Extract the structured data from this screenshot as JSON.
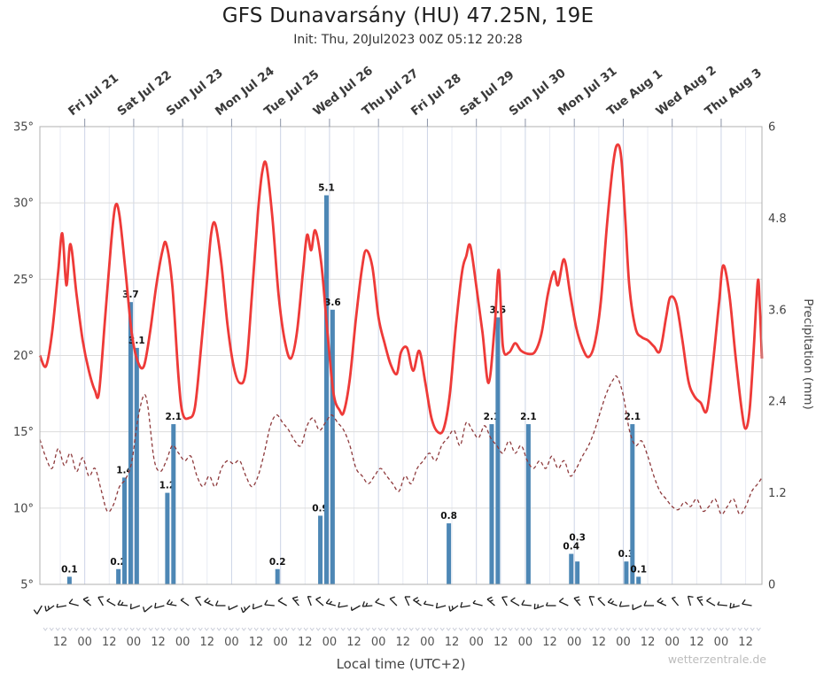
{
  "header": {
    "title": "GFS Dunavarsány (HU) 47.25N, 19E",
    "subtitle": "Init: Thu, 20Jul2023 00Z 05:12 20:28"
  },
  "footer": {
    "xlabel": "Local time (UTC+2)",
    "watermark": "wetterzentrale.de"
  },
  "colors": {
    "temperature": "#ee3a38",
    "dewpoint": "#8e3a3c",
    "precip_bar": "#4d87b5",
    "grid_h": "#dcdcdc",
    "grid_v_major": "#ccd4e6",
    "grid_v_minor": "#e8ebf3",
    "frame": "#b0b0b0",
    "axis_text": "#444444",
    "day_label": "#3a3a3a",
    "bar_label": "#111111",
    "wind_barb": "#1c1c1c",
    "minor_glyph": "#c6cad6"
  },
  "chart_data": {
    "type": "line+bar",
    "x_unit": "hours since Thu 20 Jul 2023 00:00 local (UTC+2)",
    "x_range": [
      2,
      356
    ],
    "temp_axis": {
      "range": [
        5,
        35
      ],
      "ticks": [
        5,
        10,
        15,
        20,
        25,
        30,
        35
      ],
      "suffix": "°"
    },
    "precip_axis": {
      "label": "Precipitation (mm)",
      "range": [
        0,
        6
      ],
      "ticks": [
        0,
        1.2,
        2.4,
        3.6,
        4.8,
        6
      ]
    },
    "day_labels": [
      {
        "t": 24,
        "label": "Fri Jul 21"
      },
      {
        "t": 48,
        "label": "Sat Jul 22"
      },
      {
        "t": 72,
        "label": "Sun Jul 23"
      },
      {
        "t": 96,
        "label": "Mon Jul 24"
      },
      {
        "t": 120,
        "label": "Tue Jul 25"
      },
      {
        "t": 144,
        "label": "Wed Jul 26"
      },
      {
        "t": 168,
        "label": "Thu Jul 27"
      },
      {
        "t": 192,
        "label": "Fri Jul 28"
      },
      {
        "t": 216,
        "label": "Sat Jul 29"
      },
      {
        "t": 240,
        "label": "Sun Jul 30"
      },
      {
        "t": 264,
        "label": "Mon Jul 31"
      },
      {
        "t": 288,
        "label": "Tue Aug 1"
      },
      {
        "t": 312,
        "label": "Wed Aug 2"
      },
      {
        "t": 336,
        "label": "Thu Aug 3"
      }
    ],
    "x_ticks": {
      "t_start": 12,
      "t_step": 12,
      "count": 29,
      "labels_cycle": [
        "12",
        "00"
      ]
    },
    "series": [
      {
        "name": "temperature-2m",
        "style": "solid",
        "points": [
          [
            2,
            20.0
          ],
          [
            5,
            19.3
          ],
          [
            8,
            21.5
          ],
          [
            11,
            25.5
          ],
          [
            13,
            28.0
          ],
          [
            15,
            24.6
          ],
          [
            17,
            27.3
          ],
          [
            20,
            24.0
          ],
          [
            23,
            21.0
          ],
          [
            26,
            19.0
          ],
          [
            29,
            17.7
          ],
          [
            31,
            17.6
          ],
          [
            34,
            22.5
          ],
          [
            37,
            27.5
          ],
          [
            39,
            29.8
          ],
          [
            41,
            29.2
          ],
          [
            44,
            25.5
          ],
          [
            47,
            21.5
          ],
          [
            50,
            19.6
          ],
          [
            53,
            19.3
          ],
          [
            56,
            21.5
          ],
          [
            59,
            24.5
          ],
          [
            62,
            26.8
          ],
          [
            64,
            27.3
          ],
          [
            67,
            24.5
          ],
          [
            70,
            18.5
          ],
          [
            72,
            16.2
          ],
          [
            75,
            15.9
          ],
          [
            78,
            16.6
          ],
          [
            81,
            20.5
          ],
          [
            84,
            25.0
          ],
          [
            86,
            28.0
          ],
          [
            88,
            28.6
          ],
          [
            91,
            26.0
          ],
          [
            94,
            22.0
          ],
          [
            97,
            19.3
          ],
          [
            100,
            18.2
          ],
          [
            103,
            19.0
          ],
          [
            106,
            24.0
          ],
          [
            109,
            29.5
          ],
          [
            111,
            32.0
          ],
          [
            113,
            32.5
          ],
          [
            116,
            29.0
          ],
          [
            119,
            24.0
          ],
          [
            122,
            21.0
          ],
          [
            125,
            19.8
          ],
          [
            128,
            21.5
          ],
          [
            131,
            25.5
          ],
          [
            133,
            27.9
          ],
          [
            135,
            26.9
          ],
          [
            137,
            28.2
          ],
          [
            140,
            26.0
          ],
          [
            143,
            21.5
          ],
          [
            146,
            17.5
          ],
          [
            149,
            16.4
          ],
          [
            151,
            16.3
          ],
          [
            154,
            18.5
          ],
          [
            157,
            22.5
          ],
          [
            160,
            25.8
          ],
          [
            162,
            26.9
          ],
          [
            165,
            25.8
          ],
          [
            168,
            22.5
          ],
          [
            171,
            20.8
          ],
          [
            174,
            19.4
          ],
          [
            177,
            18.8
          ],
          [
            179,
            20.2
          ],
          [
            182,
            20.5
          ],
          [
            185,
            19.0
          ],
          [
            188,
            20.3
          ],
          [
            191,
            18.2
          ],
          [
            194,
            15.9
          ],
          [
            197,
            15.0
          ],
          [
            200,
            15.2
          ],
          [
            203,
            17.5
          ],
          [
            206,
            22.0
          ],
          [
            209,
            25.5
          ],
          [
            211,
            26.5
          ],
          [
            213,
            27.2
          ],
          [
            216,
            24.5
          ],
          [
            219,
            21.5
          ],
          [
            222,
            18.2
          ],
          [
            225,
            22.0
          ],
          [
            227,
            25.6
          ],
          [
            229,
            20.6
          ],
          [
            232,
            20.2
          ],
          [
            235,
            20.8
          ],
          [
            238,
            20.3
          ],
          [
            242,
            20.1
          ],
          [
            245,
            20.3
          ],
          [
            248,
            21.5
          ],
          [
            251,
            24.0
          ],
          [
            254,
            25.5
          ],
          [
            256,
            24.6
          ],
          [
            259,
            26.3
          ],
          [
            262,
            24.0
          ],
          [
            265,
            21.8
          ],
          [
            268,
            20.5
          ],
          [
            271,
            19.9
          ],
          [
            274,
            20.8
          ],
          [
            277,
            23.5
          ],
          [
            280,
            28.5
          ],
          [
            283,
            32.5
          ],
          [
            285,
            33.8
          ],
          [
            287,
            33.0
          ],
          [
            289,
            29.0
          ],
          [
            291,
            24.5
          ],
          [
            294,
            21.8
          ],
          [
            297,
            21.2
          ],
          [
            300,
            21.0
          ],
          [
            303,
            20.6
          ],
          [
            306,
            20.3
          ],
          [
            309,
            22.5
          ],
          [
            311,
            23.8
          ],
          [
            314,
            23.4
          ],
          [
            317,
            21.0
          ],
          [
            320,
            18.3
          ],
          [
            323,
            17.3
          ],
          [
            326,
            16.9
          ],
          [
            329,
            16.4
          ],
          [
            332,
            19.5
          ],
          [
            335,
            23.5
          ],
          [
            337,
            25.9
          ],
          [
            340,
            24.0
          ],
          [
            343,
            20.0
          ],
          [
            346,
            16.5
          ],
          [
            348,
            15.2
          ],
          [
            350,
            16.5
          ],
          [
            352,
            20.5
          ],
          [
            354,
            24.9
          ],
          [
            355,
            23.0
          ],
          [
            356,
            19.8
          ]
        ]
      },
      {
        "name": "dewpoint-2m",
        "style": "dashed",
        "points": [
          [
            2,
            14.5
          ],
          [
            5,
            13.3
          ],
          [
            8,
            12.6
          ],
          [
            11,
            13.9
          ],
          [
            14,
            12.8
          ],
          [
            17,
            13.6
          ],
          [
            20,
            12.4
          ],
          [
            23,
            13.3
          ],
          [
            26,
            12.1
          ],
          [
            29,
            12.6
          ],
          [
            32,
            11.2
          ],
          [
            35,
            9.8
          ],
          [
            38,
            10.2
          ],
          [
            41,
            11.4
          ],
          [
            44,
            11.9
          ],
          [
            47,
            13.0
          ],
          [
            50,
            15.8
          ],
          [
            53,
            17.4
          ],
          [
            55,
            16.6
          ],
          [
            58,
            13.2
          ],
          [
            61,
            12.4
          ],
          [
            64,
            13.1
          ],
          [
            67,
            14.1
          ],
          [
            70,
            13.6
          ],
          [
            73,
            13.1
          ],
          [
            76,
            13.4
          ],
          [
            79,
            12.1
          ],
          [
            82,
            11.4
          ],
          [
            85,
            12.1
          ],
          [
            88,
            11.4
          ],
          [
            91,
            12.6
          ],
          [
            94,
            13.1
          ],
          [
            97,
            12.9
          ],
          [
            100,
            13.1
          ],
          [
            103,
            12.1
          ],
          [
            106,
            11.4
          ],
          [
            109,
            12.1
          ],
          [
            112,
            13.6
          ],
          [
            115,
            15.4
          ],
          [
            118,
            16.1
          ],
          [
            121,
            15.6
          ],
          [
            124,
            15.1
          ],
          [
            127,
            14.4
          ],
          [
            130,
            14.1
          ],
          [
            133,
            15.4
          ],
          [
            136,
            15.9
          ],
          [
            139,
            15.1
          ],
          [
            142,
            15.6
          ],
          [
            145,
            16.1
          ],
          [
            148,
            15.6
          ],
          [
            151,
            15.1
          ],
          [
            154,
            14.1
          ],
          [
            157,
            12.6
          ],
          [
            160,
            12.1
          ],
          [
            163,
            11.6
          ],
          [
            166,
            12.1
          ],
          [
            169,
            12.6
          ],
          [
            172,
            12.1
          ],
          [
            175,
            11.6
          ],
          [
            178,
            11.1
          ],
          [
            181,
            12.1
          ],
          [
            184,
            11.6
          ],
          [
            187,
            12.6
          ],
          [
            190,
            13.1
          ],
          [
            193,
            13.6
          ],
          [
            196,
            13.1
          ],
          [
            199,
            14.1
          ],
          [
            202,
            14.6
          ],
          [
            205,
            15.1
          ],
          [
            208,
            14.1
          ],
          [
            211,
            15.6
          ],
          [
            214,
            15.1
          ],
          [
            217,
            14.6
          ],
          [
            220,
            15.4
          ],
          [
            223,
            14.6
          ],
          [
            226,
            14.1
          ],
          [
            229,
            13.6
          ],
          [
            232,
            14.4
          ],
          [
            235,
            13.6
          ],
          [
            238,
            14.1
          ],
          [
            241,
            13.1
          ],
          [
            244,
            12.6
          ],
          [
            247,
            13.1
          ],
          [
            250,
            12.6
          ],
          [
            253,
            13.4
          ],
          [
            256,
            12.6
          ],
          [
            259,
            13.1
          ],
          [
            262,
            12.1
          ],
          [
            265,
            12.6
          ],
          [
            268,
            13.4
          ],
          [
            271,
            14.1
          ],
          [
            274,
            15.1
          ],
          [
            277,
            16.4
          ],
          [
            280,
            17.6
          ],
          [
            283,
            18.4
          ],
          [
            285,
            18.6
          ],
          [
            288,
            17.4
          ],
          [
            291,
            15.1
          ],
          [
            294,
            14.1
          ],
          [
            297,
            14.4
          ],
          [
            300,
            13.4
          ],
          [
            303,
            12.1
          ],
          [
            306,
            11.1
          ],
          [
            309,
            10.6
          ],
          [
            312,
            10.1
          ],
          [
            315,
            9.9
          ],
          [
            318,
            10.4
          ],
          [
            321,
            10.1
          ],
          [
            324,
            10.6
          ],
          [
            327,
            9.8
          ],
          [
            330,
            10.1
          ],
          [
            333,
            10.6
          ],
          [
            336,
            9.6
          ],
          [
            339,
            10.1
          ],
          [
            342,
            10.6
          ],
          [
            345,
            9.6
          ],
          [
            348,
            10.1
          ],
          [
            351,
            11.1
          ],
          [
            354,
            11.6
          ],
          [
            356,
            12.0
          ]
        ]
      }
    ],
    "precip_bars": [
      {
        "t": 15,
        "v": 0.1
      },
      {
        "t": 39,
        "v": 0.2
      },
      {
        "t": 42,
        "v": 1.4
      },
      {
        "t": 45,
        "v": 3.7
      },
      {
        "t": 48,
        "v": 3.1
      },
      {
        "t": 63,
        "v": 1.2
      },
      {
        "t": 66,
        "v": 2.1
      },
      {
        "t": 117,
        "v": 0.2
      },
      {
        "t": 138,
        "v": 0.9
      },
      {
        "t": 141,
        "v": 5.1
      },
      {
        "t": 144,
        "v": 3.6
      },
      {
        "t": 201,
        "v": 0.8
      },
      {
        "t": 222,
        "v": 2.1
      },
      {
        "t": 225,
        "v": 3.5
      },
      {
        "t": 240,
        "v": 2.1
      },
      {
        "t": 261,
        "v": 0.4
      },
      {
        "t": 264,
        "v": 0.3
      },
      {
        "t": 288,
        "v": 0.3
      },
      {
        "t": 291,
        "v": 2.1
      },
      {
        "t": 294,
        "v": 0.1
      }
    ],
    "wind": {
      "t_start": 3,
      "t_step": 6,
      "dirs": [
        210,
        235,
        260,
        285,
        310,
        330,
        300,
        275,
        250,
        230,
        255,
        280,
        305,
        325,
        295,
        270,
        245,
        225,
        250,
        275,
        300,
        320,
        340,
        310,
        285,
        260,
        240,
        265,
        290,
        315,
        335,
        305,
        280,
        255,
        235,
        260,
        285,
        310,
        330,
        300,
        275,
        250,
        270,
        295,
        320,
        340,
        315,
        290,
        265,
        245,
        270,
        295,
        320,
        345,
        325,
        300,
        275,
        255,
        280
      ],
      "spd_cycle": [
        10,
        15,
        5,
        10,
        15,
        10,
        5,
        15,
        10,
        10
      ]
    }
  }
}
